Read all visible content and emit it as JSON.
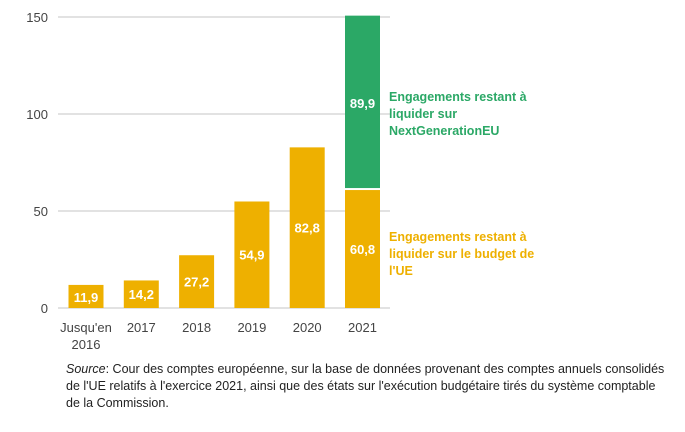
{
  "chart_data": {
    "type": "bar",
    "stacked": true,
    "categories": [
      "Jusqu'en 2016",
      "2017",
      "2018",
      "2019",
      "2020",
      "2021"
    ],
    "category_lines": [
      [
        "Jusqu'en",
        "2016"
      ],
      [
        "2017"
      ],
      [
        "2018"
      ],
      [
        "2019"
      ],
      [
        "2020"
      ],
      [
        "2021"
      ]
    ],
    "series": [
      {
        "name": "Engagements restant à liquider sur le budget de l'UE",
        "color": "#EEB000",
        "values": [
          11.9,
          14.2,
          27.2,
          54.9,
          82.8,
          60.8
        ],
        "labels": [
          "11,9",
          "14,2",
          "27,2",
          "54,9",
          "82,8",
          "60,8"
        ]
      },
      {
        "name": "Engagements restant à liquider sur NextGenerationEU",
        "color": "#2BA866",
        "values": [
          0,
          0,
          0,
          0,
          0,
          89.9
        ],
        "labels": [
          "",
          "",
          "",
          "",
          "",
          "89,9"
        ]
      }
    ],
    "ylim": [
      0,
      150
    ],
    "yticks": [
      "0",
      "50",
      "100",
      "150"
    ],
    "ytick_values": [
      0,
      50,
      100,
      150
    ],
    "grid": true,
    "legend_placement": "right",
    "legend_green": "Engagements restant à liquider sur NextGenerationEU",
    "legend_yellow": "Engagements restant à liquider sur le budget de l'UE"
  },
  "source": {
    "label": "Source",
    "text": ": Cour des comptes européenne, sur la base de données provenant des comptes annuels consolidés de l'UE relatifs à l'exercice 2021, ainsi que des états sur l'exécution budgétaire tirés du système comptable de la Commission."
  }
}
